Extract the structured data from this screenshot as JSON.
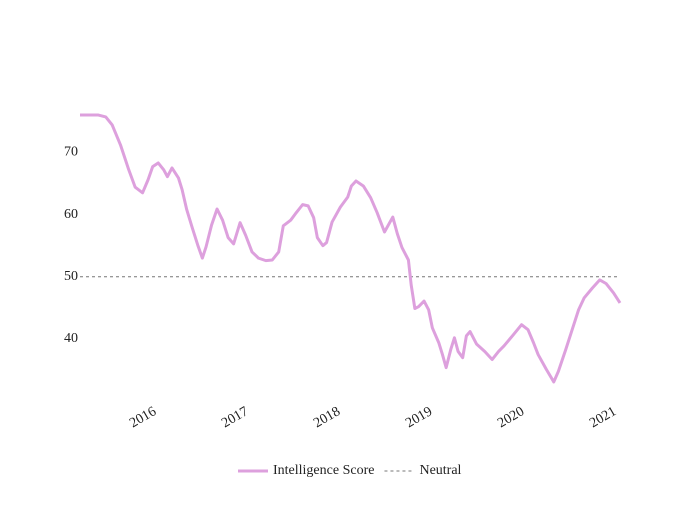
{
  "chart_data": {
    "type": "line",
    "series": [
      {
        "name": "Intelligence Score",
        "color": "#dda0dd",
        "dash": false,
        "x": [
          2015.18,
          2015.38,
          2015.46,
          2015.53,
          2015.62,
          2015.71,
          2015.78,
          2015.86,
          2015.92,
          2015.97,
          2016.03,
          2016.09,
          2016.13,
          2016.18,
          2016.25,
          2016.29,
          2016.34,
          2016.4,
          2016.46,
          2016.51,
          2016.55,
          2016.61,
          2016.67,
          2016.73,
          2016.79,
          2016.85,
          2016.92,
          2016.98,
          2017.05,
          2017.12,
          2017.2,
          2017.27,
          2017.34,
          2017.39,
          2017.47,
          2017.52,
          2017.6,
          2017.66,
          2017.72,
          2017.76,
          2017.82,
          2017.86,
          2017.92,
          2018.01,
          2018.09,
          2018.13,
          2018.18,
          2018.26,
          2018.34,
          2018.41,
          2018.49,
          2018.58,
          2018.63,
          2018.68,
          2018.75,
          2018.78,
          2018.82,
          2018.86,
          2018.92,
          2018.97,
          2019.01,
          2019.08,
          2019.12,
          2019.16,
          2019.21,
          2019.25,
          2019.29,
          2019.34,
          2019.38,
          2019.42,
          2019.49,
          2019.58,
          2019.66,
          2019.73,
          2019.79,
          2019.88,
          2019.98,
          2020.05,
          2020.11,
          2020.16,
          2020.25,
          2020.33,
          2020.38,
          2020.46,
          2020.53,
          2020.6,
          2020.66,
          2020.75,
          2020.83,
          2020.9,
          2020.98,
          2021.05
        ],
        "values": [
          76.0,
          76.0,
          75.7,
          74.4,
          71.2,
          67.2,
          64.4,
          63.5,
          65.6,
          67.7,
          68.3,
          67.2,
          66.1,
          67.5,
          65.9,
          64.0,
          60.8,
          57.9,
          55.1,
          53.0,
          54.8,
          58.3,
          60.9,
          59.1,
          56.3,
          55.3,
          58.7,
          56.7,
          54.0,
          53.0,
          52.6,
          52.7,
          54.0,
          58.2,
          59.1,
          60.1,
          61.6,
          61.4,
          59.5,
          56.3,
          55.0,
          55.5,
          58.8,
          61.2,
          62.8,
          64.6,
          65.4,
          64.6,
          62.7,
          60.3,
          57.2,
          59.6,
          56.9,
          54.7,
          52.7,
          48.7,
          44.9,
          45.2,
          46.1,
          44.7,
          41.8,
          39.4,
          37.5,
          35.4,
          38.3,
          40.2,
          38.0,
          37.0,
          40.5,
          41.2,
          39.2,
          38.0,
          36.7,
          38.0,
          38.9,
          40.5,
          42.3,
          41.5,
          39.4,
          37.5,
          35.1,
          33.1,
          34.8,
          38.3,
          41.5,
          44.7,
          46.6,
          48.2,
          49.5,
          48.9,
          47.4,
          45.8
        ]
      },
      {
        "name": "Neutral",
        "color": "#777777",
        "dash": true,
        "x": [
          2015.18,
          2021.05
        ],
        "values": [
          50,
          50
        ]
      }
    ],
    "xlim": [
      2015.18,
      2021.05
    ],
    "xticks": [
      2016,
      2017,
      2018,
      2019,
      2020,
      2021
    ],
    "ylim": [
      31,
      78
    ],
    "yticks": [
      40,
      50,
      60,
      70
    ],
    "legend": "bottom"
  }
}
